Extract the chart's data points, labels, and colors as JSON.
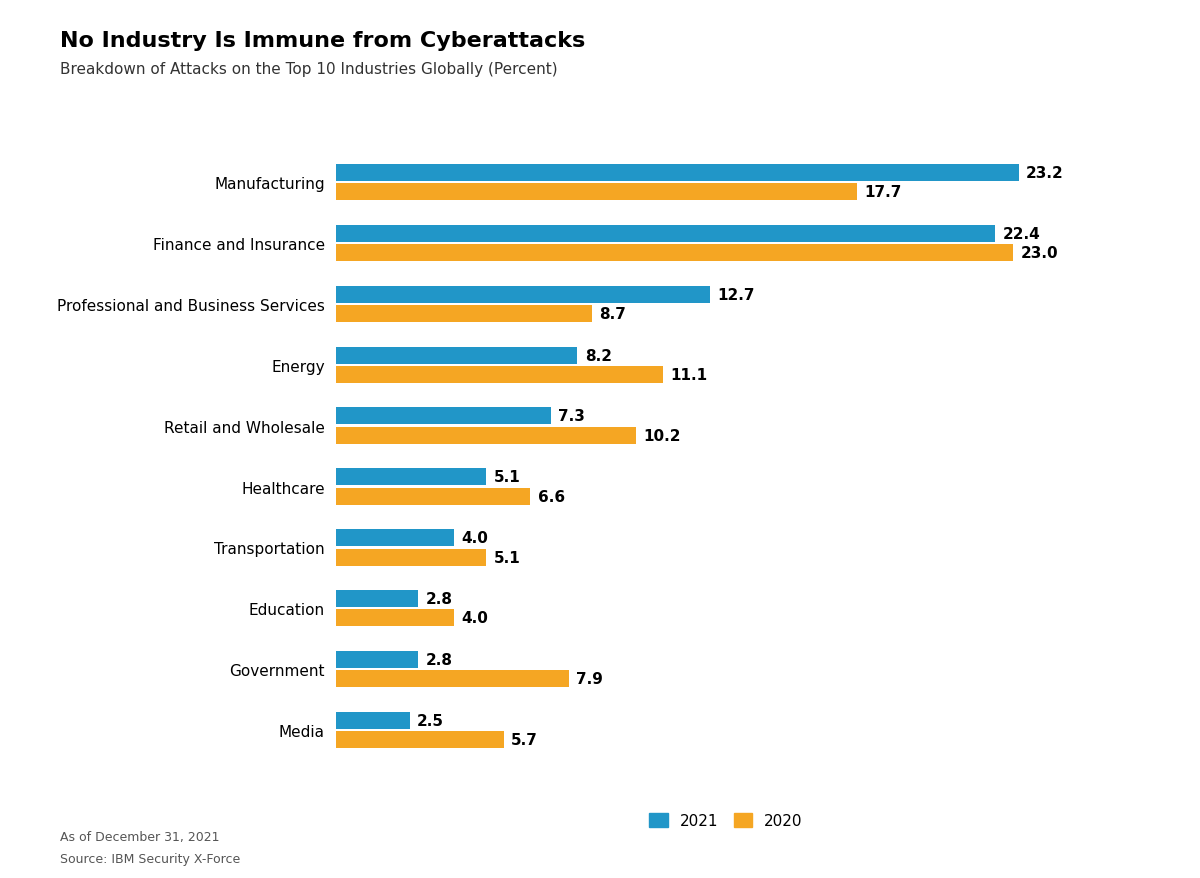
{
  "title": "No Industry Is Immune from Cyberattacks",
  "subtitle": "Breakdown of Attacks on the Top 10 Industries Globally (Percent)",
  "categories": [
    "Manufacturing",
    "Finance and Insurance",
    "Professional and Business Services",
    "Energy",
    "Retail and Wholesale",
    "Healthcare",
    "Transportation",
    "Education",
    "Government",
    "Media"
  ],
  "values_2021": [
    23.2,
    22.4,
    12.7,
    8.2,
    7.3,
    5.1,
    4.0,
    2.8,
    2.8,
    2.5
  ],
  "values_2020": [
    17.7,
    23.0,
    8.7,
    11.1,
    10.2,
    6.6,
    5.1,
    4.0,
    7.9,
    5.7
  ],
  "color_2021": "#2196C8",
  "color_2020": "#F5A623",
  "background_color": "#FFFFFF",
  "title_fontsize": 16,
  "subtitle_fontsize": 11,
  "label_fontsize": 11,
  "bar_label_fontsize": 11,
  "legend_label_2021": "2021",
  "legend_label_2020": "2020",
  "footnote_1": "As of December 31, 2021",
  "footnote_2": "Source: IBM Security X-Force",
  "xlim": [
    0,
    26.5
  ],
  "bar_height": 0.28,
  "bar_gap": 0.04
}
